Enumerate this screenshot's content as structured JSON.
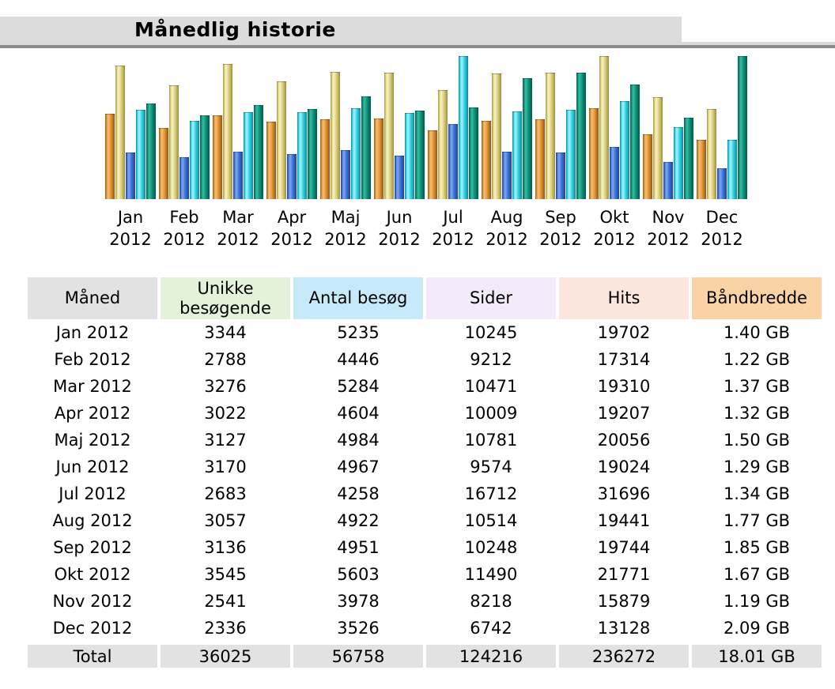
{
  "page": {
    "title": "Månedlig historie"
  },
  "colors": {
    "title_bar_bg": "#DCDCDC",
    "divider_light": "#DADADA",
    "divider_dark": "#8A8A8A",
    "total_row_bg": "#E2E2E2",
    "month_header_bg": "#E2E2E2",
    "uv_header_bg": "#E2F3DA",
    "visits_header_bg": "#C6EAFA",
    "pages_header_bg": "#F4EBFA",
    "hits_header_bg": "#FCE6DE",
    "bandwidth_header_bg": "#FBD2A4"
  },
  "chart_data": {
    "type": "bar",
    "title": "Månedlig historie",
    "xlabel": "",
    "ylabel": "",
    "grid": false,
    "legend_position": "none",
    "categories": [
      "Jan 2012",
      "Feb 2012",
      "Mar 2012",
      "Apr 2012",
      "Maj 2012",
      "Jun 2012",
      "Jul 2012",
      "Aug 2012",
      "Sep 2012",
      "Okt 2012",
      "Nov 2012",
      "Dec 2012"
    ],
    "series": [
      {
        "name": "Unikke besøgende",
        "values": [
          3344,
          2788,
          3276,
          3022,
          3127,
          3170,
          2683,
          3057,
          3136,
          3545,
          2541,
          2336
        ],
        "scale_max": 5603,
        "edge": "#96570E",
        "mid": "#E0912F",
        "highlight": "#F8C077"
      },
      {
        "name": "Antal besøg",
        "values": [
          5235,
          4446,
          5284,
          4604,
          4984,
          4967,
          4258,
          4922,
          4951,
          5603,
          3978,
          3526
        ],
        "scale_max": 5603,
        "edge": "#9D9045",
        "mid": "#DCD07C",
        "highlight": "#F8F3C4"
      },
      {
        "name": "Sider",
        "values": [
          10245,
          9212,
          10471,
          10009,
          10781,
          9574,
          16712,
          10514,
          10248,
          11490,
          8218,
          6742
        ],
        "scale_max": 31696,
        "edge": "#1B429C",
        "mid": "#3E70D8",
        "highlight": "#7FA8EE"
      },
      {
        "name": "Hits",
        "values": [
          19702,
          17314,
          19310,
          19207,
          20056,
          19024,
          31696,
          19441,
          19744,
          21771,
          15879,
          13128
        ],
        "scale_max": 31696,
        "edge": "#0C89A2",
        "mid": "#33D2E2",
        "highlight": "#AAF3F7"
      },
      {
        "name": "Båndbredde (GB)",
        "values": [
          1.4,
          1.22,
          1.37,
          1.32,
          1.5,
          1.29,
          1.34,
          1.77,
          1.85,
          1.67,
          1.19,
          2.09
        ],
        "scale_max": 2.09,
        "edge": "#035A4D",
        "mid": "#0B8E78",
        "highlight": "#37BD9F"
      }
    ]
  },
  "table": {
    "headers": [
      {
        "key": "maaned",
        "label": "Måned",
        "bg": "#E2E2E2"
      },
      {
        "key": "uv",
        "label": "Unikke besøgende",
        "bg": "#E2F3DA"
      },
      {
        "key": "visits",
        "label": "Antal besøg",
        "bg": "#C6EAFA"
      },
      {
        "key": "pages",
        "label": "Sider",
        "bg": "#F4EBFA"
      },
      {
        "key": "hits",
        "label": "Hits",
        "bg": "#FCE6DE"
      },
      {
        "key": "bw",
        "label": "Båndbredde",
        "bg": "#FBD2A4"
      }
    ],
    "rows": [
      [
        "Jan 2012",
        "3344",
        "5235",
        "10245",
        "19702",
        "1.40 GB"
      ],
      [
        "Feb 2012",
        "2788",
        "4446",
        "9212",
        "17314",
        "1.22 GB"
      ],
      [
        "Mar 2012",
        "3276",
        "5284",
        "10471",
        "19310",
        "1.37 GB"
      ],
      [
        "Apr 2012",
        "3022",
        "4604",
        "10009",
        "19207",
        "1.32 GB"
      ],
      [
        "Maj 2012",
        "3127",
        "4984",
        "10781",
        "20056",
        "1.50 GB"
      ],
      [
        "Jun 2012",
        "3170",
        "4967",
        "9574",
        "19024",
        "1.29 GB"
      ],
      [
        "Jul 2012",
        "2683",
        "4258",
        "16712",
        "31696",
        "1.34 GB"
      ],
      [
        "Aug 2012",
        "3057",
        "4922",
        "10514",
        "19441",
        "1.77 GB"
      ],
      [
        "Sep 2012",
        "3136",
        "4951",
        "10248",
        "19744",
        "1.85 GB"
      ],
      [
        "Okt 2012",
        "3545",
        "5603",
        "11490",
        "21771",
        "1.67 GB"
      ],
      [
        "Nov 2012",
        "2541",
        "3978",
        "8218",
        "15879",
        "1.19 GB"
      ],
      [
        "Dec 2012",
        "2336",
        "3526",
        "6742",
        "13128",
        "2.09 GB"
      ]
    ],
    "total_row": [
      "Total",
      "36025",
      "56758",
      "124216",
      "236272",
      "18.01 GB"
    ]
  }
}
